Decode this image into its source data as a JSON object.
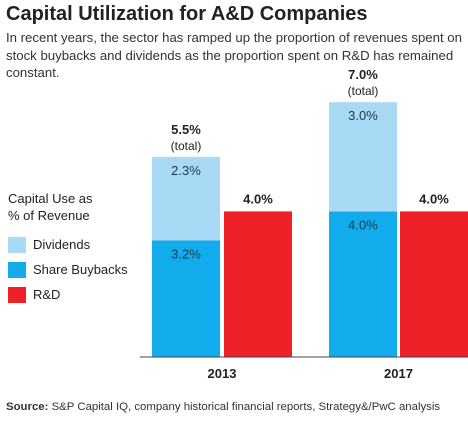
{
  "header": {
    "title": "Capital Utilization for A&D Companies",
    "subtitle": "In recent years, the sector has ramped up the proportion of revenues spent on stock buybacks and dividends as the proportion spent on R&D has remained constant."
  },
  "legend": {
    "title_line1": "Capital Use as",
    "title_line2": "% of Revenue",
    "items": [
      {
        "label": "Dividends",
        "color": "#a8d9f5"
      },
      {
        "label": "Share Buybacks",
        "color": "#12acec"
      },
      {
        "label": "R&D",
        "color": "#ee2128"
      }
    ]
  },
  "source": {
    "prefix": "Source:",
    "text": " S&P Capital IQ, company historical financial reports, Strategy&/PwC analysis"
  },
  "chart_data": {
    "type": "bar",
    "categories": [
      "2013",
      "2017"
    ],
    "series": [
      {
        "name": "Share Buybacks",
        "stack": "capital",
        "values": [
          3.2,
          4.0
        ],
        "labels": [
          "3.2%",
          "4.0%"
        ],
        "color": "#12acec"
      },
      {
        "name": "Dividends",
        "stack": "capital",
        "values": [
          2.3,
          3.0
        ],
        "labels": [
          "2.3%",
          "3.0%"
        ],
        "color": "#a8d9f5"
      },
      {
        "name": "R&D",
        "stack": "rd",
        "values": [
          4.0,
          4.0
        ],
        "labels": [
          "4.0%",
          "4.0%"
        ],
        "color": "#ee2128"
      }
    ],
    "totals": [
      {
        "value": "5.5%",
        "note": "(total)"
      },
      {
        "value": "7.0%",
        "note": "(total)"
      }
    ],
    "ylim": [
      0,
      7.0
    ],
    "grid": false,
    "legend_position": "left",
    "xlabel": "",
    "ylabel": ""
  }
}
